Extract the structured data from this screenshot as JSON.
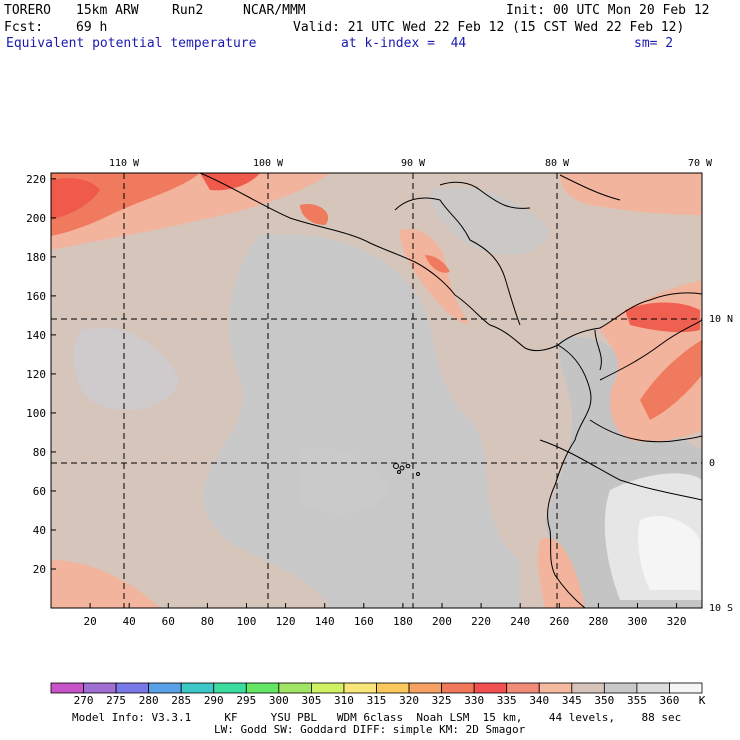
{
  "header": {
    "model": "TORERO",
    "resolution": "15km ARW",
    "run": "Run2",
    "org": "NCAR/MMM",
    "init": "Init: 00 UTC Mon 20 Feb 12",
    "fcst_label": "Fcst:",
    "fcst_value": "69 h",
    "valid": "Valid: 21 UTC Wed 22 Feb 12 (15 CST Wed 22 Feb 12)",
    "field": "Equivalent potential temperature",
    "k_index": "at k-index =  44",
    "smooth": "sm= 2"
  },
  "map": {
    "lon_labels": [
      "110 W",
      "100 W",
      "90 W",
      "80 W",
      "70 W"
    ],
    "lat_labels": [
      "10 N",
      "0",
      "10 S"
    ],
    "x_ticks": [
      "20",
      "40",
      "60",
      "80",
      "100",
      "120",
      "140",
      "160",
      "180",
      "200",
      "220",
      "240",
      "260",
      "280",
      "300",
      "320"
    ],
    "y_ticks": [
      "220",
      "200",
      "180",
      "160",
      "140",
      "120",
      "100",
      "80",
      "60",
      "40",
      "20"
    ]
  },
  "colorbar": {
    "unit": "K",
    "labels": [
      "270",
      "275",
      "280",
      "285",
      "290",
      "295",
      "300",
      "305",
      "310",
      "315",
      "320",
      "325",
      "330",
      "335",
      "340",
      "345",
      "350",
      "355",
      "360"
    ],
    "colors": [
      "#c855c8",
      "#a06ed2",
      "#7878e6",
      "#5aa0e6",
      "#3cc8c8",
      "#3cdca0",
      "#64e664",
      "#a0e664",
      "#d2f064",
      "#fae678",
      "#fac85a",
      "#f5a064",
      "#f0785a",
      "#f05050",
      "#f08c78",
      "#f5b9a0",
      "#d7c3b9",
      "#c8c8c8",
      "#dcdcdc",
      "#f5f5f5"
    ]
  },
  "footer": {
    "line1": "Model Info: V3.3.1     KF     YSU PBL   WDM 6class  Noah LSM  15 km,    44 levels,    88 sec",
    "line2": "LW: Godd SW: Goddard DIFF: simple KM: 2D Smagor"
  }
}
